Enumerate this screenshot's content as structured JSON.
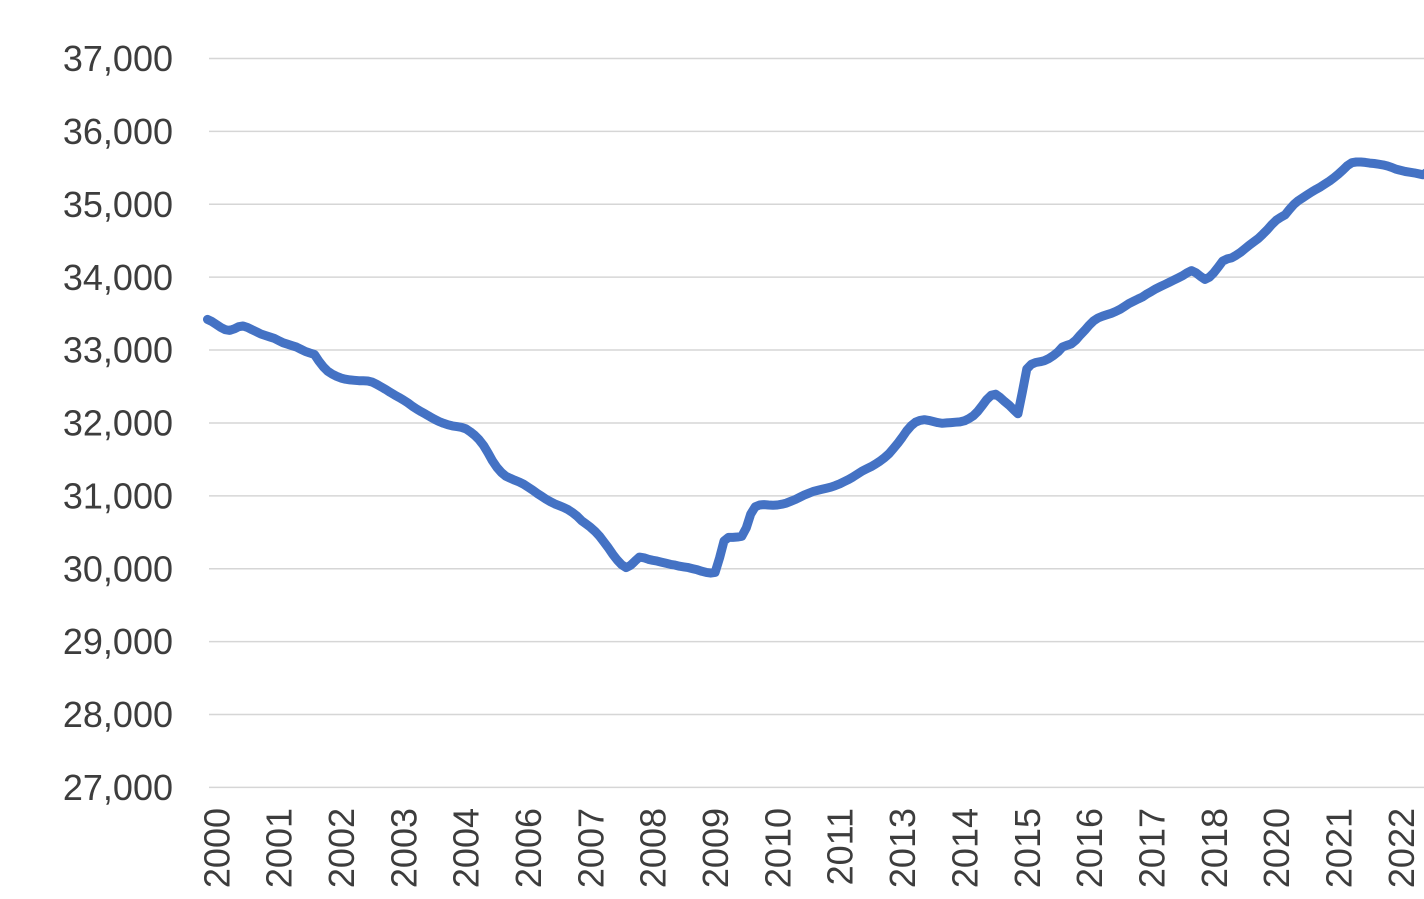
{
  "chart_data": {
    "type": "line",
    "title": "",
    "xlabel": "",
    "ylabel": "",
    "legend": null,
    "grid": true,
    "background": "#ffffff",
    "line_color": "#4472C4",
    "gridline_color": "#D6D6D6",
    "tick_text_color": "#3d3d3d",
    "ylim": [
      27000,
      37000
    ],
    "y_tick_step": 1000,
    "y_ticks": [
      {
        "label": "37,000",
        "value": 37000
      },
      {
        "label": "36,000",
        "value": 36000
      },
      {
        "label": "35,000",
        "value": 35000
      },
      {
        "label": "34,000",
        "value": 34000
      },
      {
        "label": "33,000",
        "value": 33000
      },
      {
        "label": "32,000",
        "value": 32000
      },
      {
        "label": "31,000",
        "value": 31000
      },
      {
        "label": "30,000",
        "value": 30000
      },
      {
        "label": "29,000",
        "value": 29000
      },
      {
        "label": "28,000",
        "value": 28000
      },
      {
        "label": "27,000",
        "value": 27000
      }
    ],
    "x_axis": {
      "frequency": "monthly",
      "start": "2000-01",
      "end": "2022-12",
      "n_points": 276,
      "tick_label_rotation": -90
    },
    "x_ticks": [
      {
        "label": "2000",
        "month_index": 2
      },
      {
        "label": "2001",
        "month_index": 16
      },
      {
        "label": "2002",
        "month_index": 30
      },
      {
        "label": "2003",
        "month_index": 44
      },
      {
        "label": "2004",
        "month_index": 58
      },
      {
        "label": "2006",
        "month_index": 72
      },
      {
        "label": "2007",
        "month_index": 86
      },
      {
        "label": "2008",
        "month_index": 100
      },
      {
        "label": "2009",
        "month_index": 114
      },
      {
        "label": "2010",
        "month_index": 128
      },
      {
        "label": "2011",
        "month_index": 142
      },
      {
        "label": "2013",
        "month_index": 156
      },
      {
        "label": "2014",
        "month_index": 170
      },
      {
        "label": "2015",
        "month_index": 184
      },
      {
        "label": "2016",
        "month_index": 198
      },
      {
        "label": "2017",
        "month_index": 212
      },
      {
        "label": "2018",
        "month_index": 226
      },
      {
        "label": "2020",
        "month_index": 240
      },
      {
        "label": "2021",
        "month_index": 254
      },
      {
        "label": "2022",
        "month_index": 268
      }
    ],
    "values_by_year": {
      "2000": [
        33420,
        33390,
        33350,
        33310,
        33280,
        33270,
        33290,
        33320,
        33330,
        33310,
        33280,
        33250
      ],
      "2001": [
        33220,
        33200,
        33180,
        33160,
        33130,
        33100,
        33080,
        33060,
        33040,
        33010,
        32980,
        32960
      ],
      "2002": [
        32940,
        32850,
        32770,
        32710,
        32670,
        32640,
        32615,
        32600,
        32590,
        32585,
        32580,
        32578
      ],
      "2003": [
        32575,
        32560,
        32530,
        32495,
        32460,
        32420,
        32385,
        32350,
        32315,
        32275,
        32230,
        32190
      ],
      "2004": [
        32155,
        32120,
        32085,
        32050,
        32020,
        31995,
        31975,
        31960,
        31950,
        31940,
        31920,
        31880
      ],
      "2005": [
        31830,
        31770,
        31690,
        31590,
        31480,
        31390,
        31320,
        31270,
        31240,
        31215,
        31190,
        31160
      ],
      "2006": [
        31120,
        31080,
        31035,
        30995,
        30955,
        30920,
        30890,
        30865,
        30840,
        30810,
        30770,
        30720
      ],
      "2007": [
        30660,
        30615,
        30570,
        30515,
        30450,
        30370,
        30290,
        30200,
        30120,
        30055,
        30015,
        30045
      ],
      "2008": [
        30105,
        30160,
        30150,
        30130,
        30115,
        30105,
        30090,
        30075,
        30060,
        30050,
        30035,
        30025
      ],
      "2009": [
        30015,
        30000,
        29985,
        29965,
        29950,
        29940,
        29950,
        30150,
        30380,
        30430,
        30430,
        30435
      ],
      "2010": [
        30445,
        30560,
        30750,
        30850,
        30875,
        30880,
        30875,
        30870,
        30875,
        30885,
        30900,
        30925
      ],
      "2011": [
        30950,
        30980,
        31010,
        31035,
        31060,
        31075,
        31090,
        31105,
        31120,
        31140,
        31165,
        31195
      ],
      "2012": [
        31225,
        31260,
        31300,
        31340,
        31370,
        31400,
        31435,
        31475,
        31520,
        31575,
        31645,
        31720
      ],
      "2013": [
        31800,
        31890,
        31960,
        32010,
        32035,
        32045,
        32035,
        32020,
        32005,
        31995,
        32000,
        32005
      ],
      "2014": [
        32010,
        32015,
        32030,
        32060,
        32100,
        32160,
        32240,
        32320,
        32380,
        32395,
        32350,
        32295
      ],
      "2015": [
        32245,
        32185,
        32125,
        32420,
        32740,
        32805,
        32830,
        32840,
        32855,
        32885,
        32925,
        32975
      ],
      "2016": [
        33040,
        33065,
        33085,
        33135,
        33205,
        33270,
        33340,
        33400,
        33440,
        33465,
        33485,
        33505
      ],
      "2017": [
        33530,
        33560,
        33600,
        33640,
        33670,
        33700,
        33730,
        33770,
        33805,
        33840,
        33870,
        33900
      ],
      "2018": [
        33930,
        33960,
        33990,
        34020,
        34060,
        34090,
        34060,
        34010,
        33970,
        34000,
        34060,
        34140
      ],
      "2019": [
        34220,
        34250,
        34265,
        34300,
        34340,
        34390,
        34440,
        34485,
        34530,
        34590,
        34650,
        34720
      ],
      "2020": [
        34780,
        34820,
        34855,
        34930,
        35000,
        35050,
        35090,
        35130,
        35170,
        35205,
        35240,
        35280
      ],
      "2021": [
        35320,
        35365,
        35415,
        35470,
        35530,
        35570,
        35580,
        35580,
        35575,
        35565,
        35560,
        35550
      ],
      "2022": [
        35540,
        35525,
        35505,
        35480,
        35465,
        35450,
        35440,
        35430,
        35418,
        35405,
        35445,
        35490
      ]
    }
  }
}
